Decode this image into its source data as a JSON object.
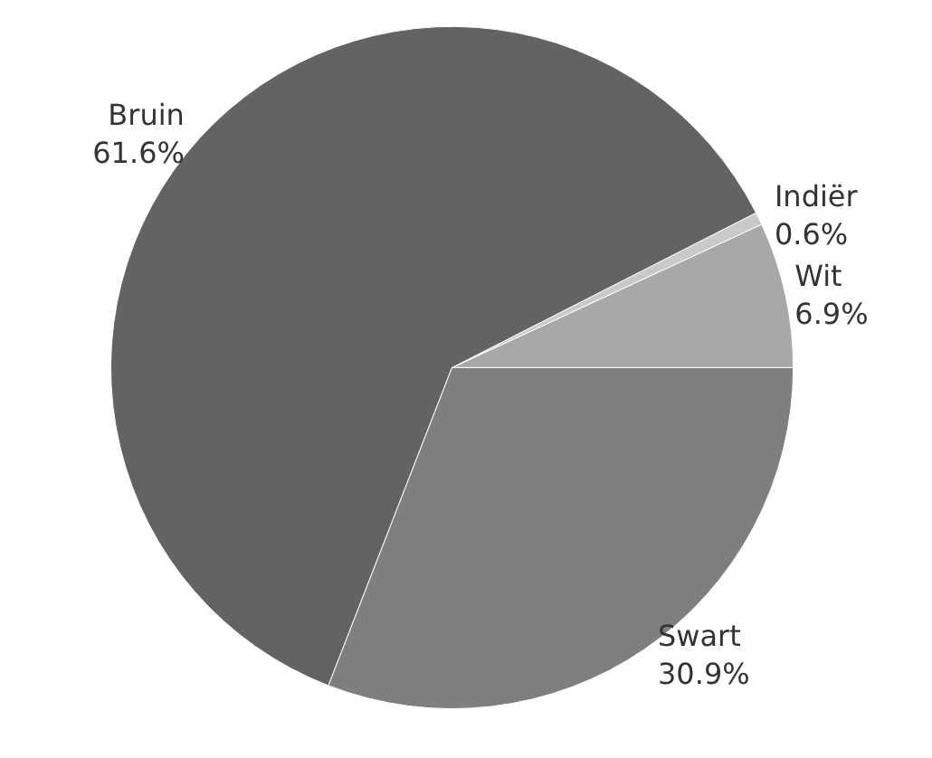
{
  "chart_data": {
    "type": "pie",
    "categories": [
      "Wit",
      "Indiër",
      "Bruin",
      "Swart"
    ],
    "values": [
      6.9,
      0.6,
      61.6,
      30.9
    ],
    "colors": [
      "#a8a8aa",
      "#c9c9ca",
      "#636365",
      "#7f7f81"
    ],
    "value_labels": [
      "6.9%",
      "0.6%",
      "61.6%",
      "30.9%"
    ],
    "legend": false
  }
}
